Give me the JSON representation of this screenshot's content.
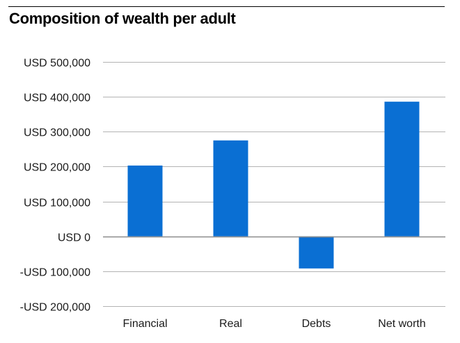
{
  "chart_data": {
    "type": "bar",
    "title": "Composition of wealth per adult",
    "categories": [
      "Financial",
      "Real",
      "Debts",
      "Net worth"
    ],
    "series": [
      {
        "values": [
          203000,
          275000,
          -92000,
          386000
        ]
      }
    ],
    "ylim": [
      -200000,
      500000
    ],
    "yticks": [
      500000,
      400000,
      300000,
      200000,
      100000,
      0,
      -100000,
      -200000
    ],
    "ytick_labels": [
      "USD 500,000",
      "USD 400,000",
      "USD 300,000",
      "USD 200,000",
      "USD 100,000",
      "USD 0",
      "-USD 100,000",
      "-USD 200,000"
    ],
    "xlabel": "",
    "ylabel": "",
    "grid": true,
    "legend": "none",
    "bar_color": "#0a6fd3",
    "grid_color": "#b3b3b3",
    "zero_line_color": "#8c8c8c"
  }
}
